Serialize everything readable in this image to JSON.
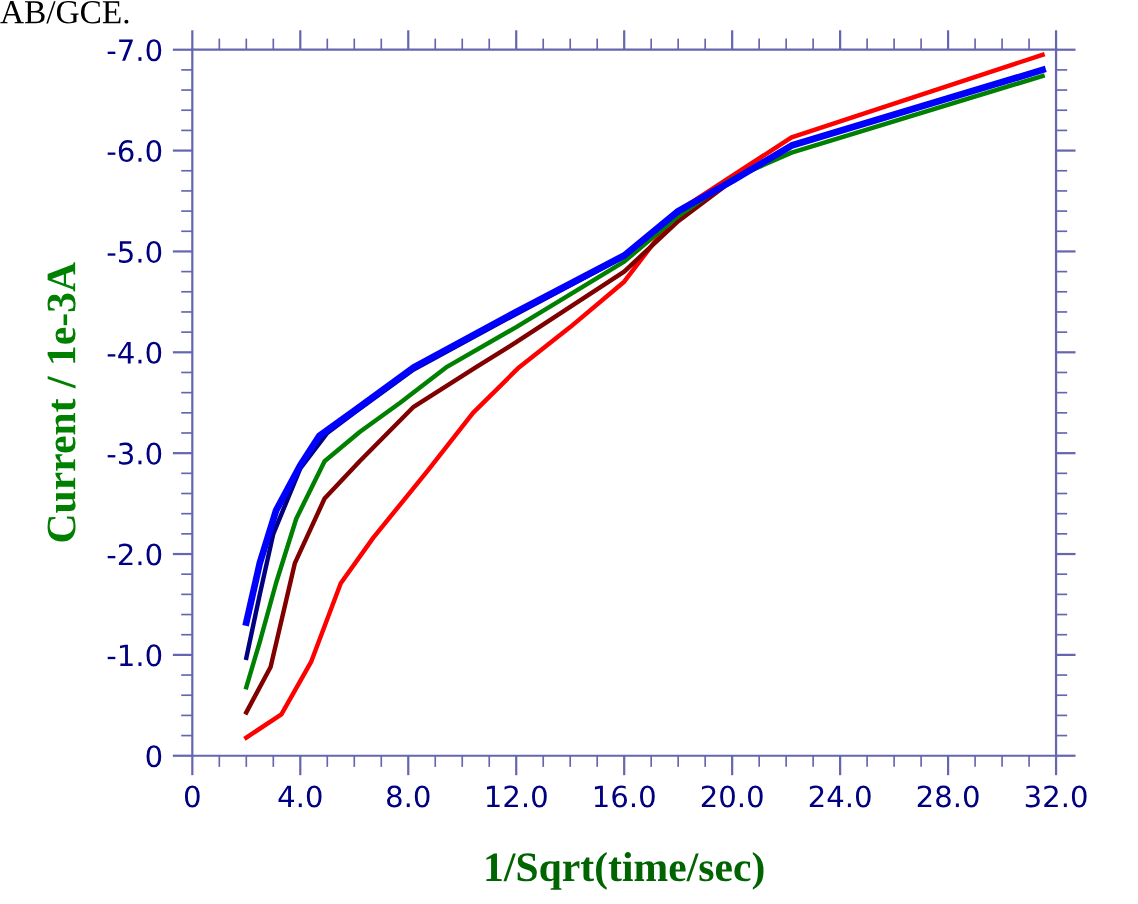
{
  "chart_data": {
    "type": "line",
    "xlabel": "1/Sqrt(time/sec)",
    "ylabel": "Current / 1e-3A",
    "annotations": [
      "AB/GCE."
    ],
    "xlim": [
      0,
      32
    ],
    "ylim": [
      0,
      -7
    ],
    "xticks": [
      0,
      {
        "value": 4,
        "label": "4.0"
      },
      {
        "value": 8,
        "label": "8.0"
      },
      {
        "value": 12,
        "label": "12.0"
      },
      {
        "value": 16,
        "label": "16.0"
      },
      {
        "value": 20,
        "label": "20.0"
      },
      {
        "value": 24,
        "label": "24.0"
      },
      {
        "value": 28,
        "label": "28.0"
      },
      {
        "value": 32,
        "label": "32.0"
      }
    ],
    "yticks": [
      0,
      {
        "value": -1,
        "label": "-1.0"
      },
      {
        "value": -2,
        "label": "-2.0"
      },
      {
        "value": -3,
        "label": "-3.0"
      },
      {
        "value": -4,
        "label": "-4.0"
      },
      {
        "value": -5,
        "label": "-5.0"
      },
      {
        "value": -6,
        "label": "-6.0"
      },
      {
        "value": -7,
        "label": "-7.0"
      }
    ],
    "grid": false,
    "marker": "none",
    "line_style": "solid",
    "series": [
      {
        "color": "#ff0000",
        "x": [
          2,
          3.3,
          4.4,
          5.5,
          6.7,
          8.7,
          10.4,
          12.1,
          14,
          16,
          18,
          20,
          22.2,
          31.5
        ],
        "values": [
          -0.18,
          -0.41,
          -0.93,
          -1.71,
          -2.16,
          -2.82,
          -3.4,
          -3.85,
          -4.25,
          -4.7,
          -5.4,
          -5.75,
          -6.13,
          -6.95
        ]
      },
      {
        "color": "#800000",
        "x": [
          2,
          2.9,
          3.8,
          4.9,
          6.2,
          8.2,
          10.5,
          12,
          16,
          18,
          20,
          22.2,
          31.5
        ],
        "values": [
          -0.43,
          -0.88,
          -1.91,
          -2.55,
          -2.92,
          -3.46,
          -3.85,
          -4.1,
          -4.8,
          -5.3,
          -5.7,
          -6.05,
          -6.8
        ]
      },
      {
        "color": "#008000",
        "x": [
          2,
          2.5,
          3.1,
          3.85,
          4.9,
          6.2,
          7.7,
          9.4,
          12,
          16,
          18,
          20,
          22.2,
          31.5
        ],
        "values": [
          -0.68,
          -1.13,
          -1.71,
          -2.35,
          -2.92,
          -3.21,
          -3.5,
          -3.85,
          -4.25,
          -4.9,
          -5.35,
          -5.72,
          -5.98,
          -6.74
        ]
      },
      {
        "color": "#000080",
        "x": [
          2,
          2.5,
          3,
          4,
          5,
          6,
          8.2,
          12,
          16,
          18,
          20,
          22.2,
          31.5
        ],
        "values": [
          -0.97,
          -1.6,
          -2.2,
          -2.85,
          -3.2,
          -3.4,
          -3.83,
          -4.38,
          -4.95,
          -5.4,
          -5.7,
          -6.05,
          -6.8
        ]
      },
      {
        "color": "#0000ff",
        "x": [
          2,
          2.5,
          3.1,
          4,
          4.7,
          6,
          8.2,
          12,
          16,
          18,
          20,
          22.2,
          31.5
        ],
        "values": [
          -1.32,
          -1.91,
          -2.43,
          -2.88,
          -3.17,
          -3.42,
          -3.85,
          -4.4,
          -4.96,
          -5.4,
          -5.7,
          -6.05,
          -6.8
        ]
      }
    ]
  }
}
